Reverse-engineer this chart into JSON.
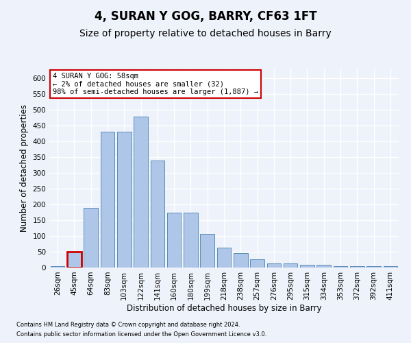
{
  "title": "4, SURAN Y GOG, BARRY, CF63 1FT",
  "subtitle": "Size of property relative to detached houses in Barry",
  "xlabel": "Distribution of detached houses by size in Barry",
  "ylabel": "Number of detached properties",
  "footer_line1": "Contains HM Land Registry data © Crown copyright and database right 2024.",
  "footer_line2": "Contains public sector information licensed under the Open Government Licence v3.0.",
  "categories": [
    "26sqm",
    "45sqm",
    "64sqm",
    "83sqm",
    "103sqm",
    "122sqm",
    "141sqm",
    "160sqm",
    "180sqm",
    "199sqm",
    "218sqm",
    "238sqm",
    "257sqm",
    "276sqm",
    "295sqm",
    "315sqm",
    "334sqm",
    "353sqm",
    "372sqm",
    "392sqm",
    "411sqm"
  ],
  "values": [
    5,
    50,
    188,
    430,
    430,
    477,
    338,
    174,
    174,
    107,
    62,
    45,
    25,
    12,
    12,
    9,
    8,
    5,
    5,
    4,
    5
  ],
  "bar_color": "#aec6e8",
  "bar_edge_color": "#5b8db8",
  "highlight_bar_index": 1,
  "highlight_color": "#cc0000",
  "annotation_text": "4 SURAN Y GOG: 58sqm\n← 2% of detached houses are smaller (32)\n98% of semi-detached houses are larger (1,887) →",
  "annotation_box_color": "#ffffff",
  "annotation_box_edge": "#cc0000",
  "ylim": [
    0,
    630
  ],
  "yticks": [
    0,
    50,
    100,
    150,
    200,
    250,
    300,
    350,
    400,
    450,
    500,
    550,
    600
  ],
  "bg_color": "#eef2fa",
  "plot_bg_color": "#eef2fa",
  "grid_color": "#ffffff",
  "title_fontsize": 12,
  "subtitle_fontsize": 10,
  "axis_label_fontsize": 8.5,
  "tick_fontsize": 7.5,
  "footer_fontsize": 6
}
